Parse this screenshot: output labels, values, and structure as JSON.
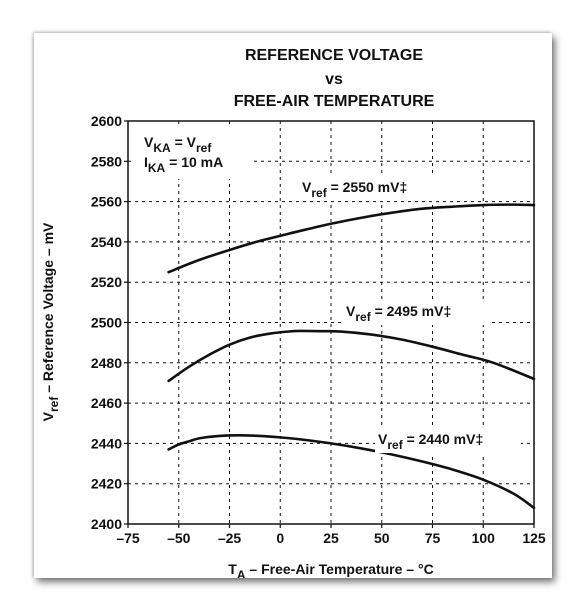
{
  "chart_data": {
    "type": "line",
    "title_lines": [
      "REFERENCE VOLTAGE",
      "vs",
      "FREE-AIR TEMPERATURE"
    ],
    "xlabel": {
      "main": "T",
      "sub": "A",
      "rest": " – Free-Air Temperature – °C"
    },
    "ylabel": {
      "main": "V",
      "sub": "ref",
      "rest": " – Reference Voltage – mV"
    },
    "xlim": [
      -75,
      125
    ],
    "ylim": [
      2400,
      2600
    ],
    "x_ticks": [
      -75,
      -50,
      -25,
      0,
      25,
      50,
      75,
      100,
      125
    ],
    "x_tick_labels": [
      "–75",
      "–50",
      "–25",
      "0",
      "25",
      "50",
      "75",
      "100",
      "125"
    ],
    "y_ticks": [
      2400,
      2420,
      2440,
      2460,
      2480,
      2500,
      2520,
      2540,
      2560,
      2580,
      2600
    ],
    "y_tick_labels": [
      "2400",
      "2420",
      "2440",
      "2460",
      "2480",
      "2500",
      "2520",
      "2540",
      "2560",
      "2580",
      "2600"
    ],
    "grid": true,
    "conditions": [
      {
        "main": "V",
        "sub": "KA",
        "rest": " = V",
        "sub2": "ref"
      },
      {
        "main": "I",
        "sub": "KA",
        "rest": " = 10 mA",
        "sub2": ""
      }
    ],
    "series": [
      {
        "label_main": "V",
        "label_sub": "ref",
        "label_rest": " = 2550 mV‡",
        "x": [
          -55,
          -40,
          -25,
          -10,
          0,
          10,
          25,
          40,
          55,
          70,
          85,
          100,
          115,
          125
        ],
        "y": [
          2525,
          2531,
          2536,
          2540.5,
          2543,
          2545.5,
          2549,
          2552,
          2554.5,
          2556.5,
          2557.5,
          2558.3,
          2558.5,
          2558.3
        ]
      },
      {
        "label_main": "V",
        "label_sub": "ref",
        "label_rest": " = 2495 mV‡",
        "x": [
          -55,
          -45,
          -35,
          -25,
          -15,
          -5,
          5,
          10,
          20,
          30,
          45,
          60,
          75,
          90,
          105,
          125
        ],
        "y": [
          2471,
          2478,
          2484,
          2489,
          2492.5,
          2494.5,
          2495.6,
          2495.8,
          2495.7,
          2495.5,
          2494,
          2491.5,
          2488,
          2484,
          2480,
          2472
        ]
      },
      {
        "label_main": "V",
        "label_sub": "ref",
        "label_rest": " = 2440 mV‡",
        "x": [
          -55,
          -50,
          -45,
          -40,
          -30,
          -20,
          -10,
          0,
          10,
          25,
          40,
          55,
          70,
          85,
          100,
          115,
          125
        ],
        "y": [
          2437,
          2439.5,
          2441,
          2442.5,
          2443.7,
          2444,
          2443.7,
          2443,
          2442,
          2440,
          2437.5,
          2434.5,
          2431,
          2427,
          2422,
          2415,
          2408
        ]
      }
    ]
  }
}
